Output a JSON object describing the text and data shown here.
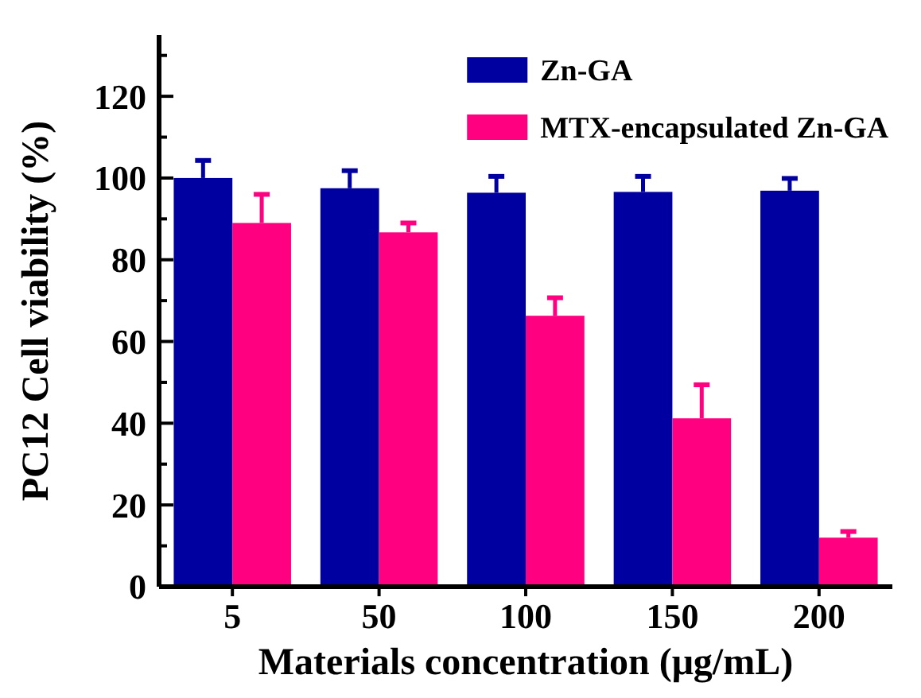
{
  "chart_data": {
    "type": "bar",
    "xlabel": "Materials concentration (μg/mL)",
    "ylabel": "PC12 Cell viability (%)",
    "categories": [
      "5",
      "50",
      "100",
      "150",
      "200"
    ],
    "series": [
      {
        "name": "Zn-GA",
        "color": "#0000a0",
        "values": [
          100,
          97.5,
          96.4,
          96.6,
          96.9
        ],
        "errors": [
          4.3,
          4.3,
          4,
          3.8,
          3
        ]
      },
      {
        "name": "MTX-encapsulated Zn-GA",
        "color": "#ff0080",
        "values": [
          89,
          86.7,
          66.3,
          41.2,
          12
        ],
        "errors": [
          7,
          2.3,
          4.4,
          8.2,
          1.5
        ]
      }
    ],
    "ylim": [
      0,
      135
    ],
    "yticks": [
      0,
      {
        "value": 10,
        "label": null
      },
      20,
      {
        "value": 30,
        "label": null
      },
      40,
      {
        "value": 50,
        "label": null
      },
      60,
      {
        "value": 70,
        "label": null
      },
      80,
      {
        "value": 90,
        "label": null
      },
      100,
      {
        "value": 110,
        "label": null
      },
      120,
      {
        "value": 130,
        "label": null
      }
    ],
    "legend": "top right"
  }
}
